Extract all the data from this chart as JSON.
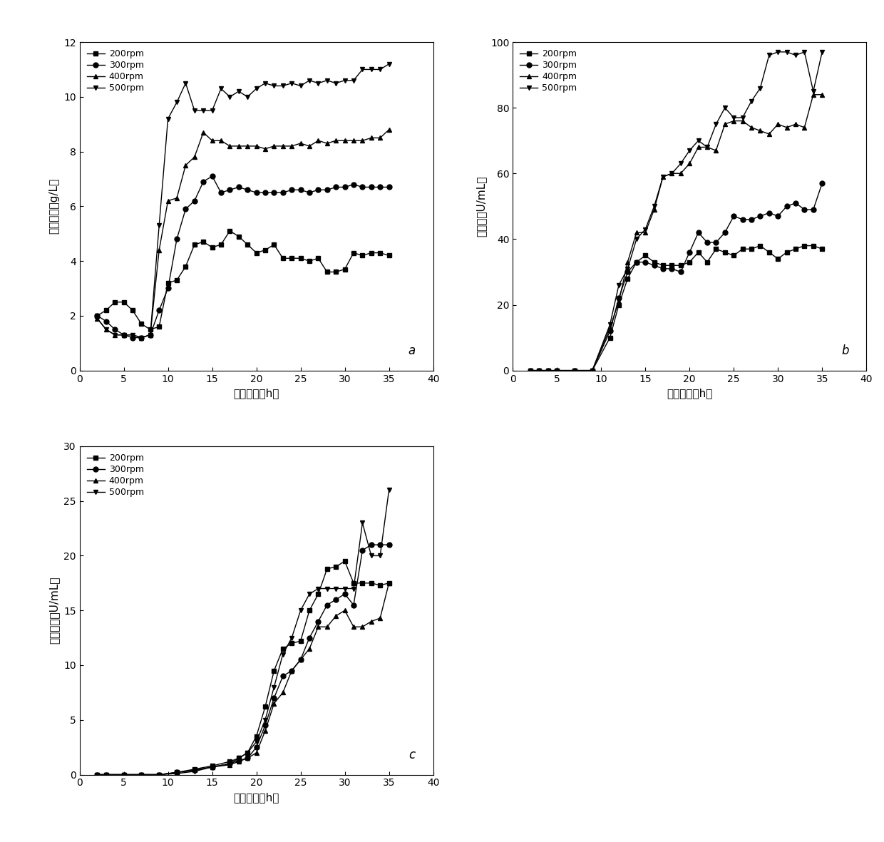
{
  "panel_a": {
    "title": "a",
    "xlabel": "发酵时间（h）",
    "ylabel": "菌体干重（g/L）",
    "xlim": [
      0,
      40
    ],
    "ylim": [
      0,
      12
    ],
    "yticks": [
      0,
      2,
      4,
      6,
      8,
      10,
      12
    ],
    "xticks": [
      0,
      5,
      10,
      15,
      20,
      25,
      30,
      35,
      40
    ],
    "series": {
      "200rpm": {
        "x": [
          2,
          3,
          4,
          5,
          6,
          7,
          8,
          9,
          10,
          11,
          12,
          13,
          14,
          15,
          16,
          17,
          18,
          19,
          20,
          21,
          22,
          23,
          24,
          25,
          26,
          27,
          28,
          29,
          30,
          31,
          32,
          33,
          34,
          35
        ],
        "y": [
          2.0,
          2.2,
          2.5,
          2.5,
          2.2,
          1.7,
          1.5,
          1.6,
          3.2,
          3.3,
          3.8,
          4.6,
          4.7,
          4.5,
          4.6,
          5.1,
          4.9,
          4.6,
          4.3,
          4.4,
          4.6,
          4.1,
          4.1,
          4.1,
          4.0,
          4.1,
          3.6,
          3.6,
          3.7,
          4.3,
          4.2,
          4.3,
          4.3,
          4.2
        ],
        "marker": "s"
      },
      "300rpm": {
        "x": [
          2,
          3,
          4,
          5,
          6,
          7,
          8,
          9,
          10,
          11,
          12,
          13,
          14,
          15,
          16,
          17,
          18,
          19,
          20,
          21,
          22,
          23,
          24,
          25,
          26,
          27,
          28,
          29,
          30,
          31,
          32,
          33,
          34,
          35
        ],
        "y": [
          2.0,
          1.8,
          1.5,
          1.3,
          1.2,
          1.2,
          1.3,
          2.2,
          3.0,
          4.8,
          5.9,
          6.2,
          6.9,
          7.1,
          6.5,
          6.6,
          6.7,
          6.6,
          6.5,
          6.5,
          6.5,
          6.5,
          6.6,
          6.6,
          6.5,
          6.6,
          6.6,
          6.7,
          6.7,
          6.8,
          6.7,
          6.7,
          6.7,
          6.7
        ],
        "marker": "o"
      },
      "400rpm": {
        "x": [
          2,
          3,
          4,
          5,
          6,
          7,
          8,
          9,
          10,
          11,
          12,
          13,
          14,
          15,
          16,
          17,
          18,
          19,
          20,
          21,
          22,
          23,
          24,
          25,
          26,
          27,
          28,
          29,
          30,
          31,
          32,
          33,
          34,
          35
        ],
        "y": [
          1.9,
          1.5,
          1.3,
          1.3,
          1.3,
          1.2,
          1.3,
          4.4,
          6.2,
          6.3,
          7.5,
          7.8,
          8.7,
          8.4,
          8.4,
          8.2,
          8.2,
          8.2,
          8.2,
          8.1,
          8.2,
          8.2,
          8.2,
          8.3,
          8.2,
          8.4,
          8.3,
          8.4,
          8.4,
          8.4,
          8.4,
          8.5,
          8.5,
          8.8
        ],
        "marker": "^"
      },
      "500rpm": {
        "x": [
          2,
          3,
          4,
          5,
          6,
          7,
          8,
          9,
          10,
          11,
          12,
          13,
          14,
          15,
          16,
          17,
          18,
          19,
          20,
          21,
          22,
          23,
          24,
          25,
          26,
          27,
          28,
          29,
          30,
          31,
          32,
          33,
          34,
          35
        ],
        "y": [
          1.9,
          1.5,
          1.3,
          1.3,
          1.3,
          1.2,
          1.3,
          5.3,
          9.2,
          9.8,
          10.5,
          9.5,
          9.5,
          9.5,
          10.3,
          10.0,
          10.2,
          10.0,
          10.3,
          10.5,
          10.4,
          10.4,
          10.5,
          10.4,
          10.6,
          10.5,
          10.6,
          10.5,
          10.6,
          10.6,
          11.0,
          11.0,
          11.0,
          11.2
        ],
        "marker": "v"
      }
    }
  },
  "panel_b": {
    "title": "b",
    "xlabel": "发酵时间（h）",
    "ylabel": "总酶活（U/mL）",
    "xlim": [
      0,
      40
    ],
    "ylim": [
      0,
      100
    ],
    "yticks": [
      0,
      20,
      40,
      60,
      80,
      100
    ],
    "xticks": [
      0,
      5,
      10,
      15,
      20,
      25,
      30,
      35,
      40
    ],
    "series": {
      "200rpm": {
        "x": [
          2,
          3,
          4,
          5,
          7,
          9,
          11,
          12,
          13,
          14,
          15,
          16,
          17,
          18,
          19,
          20,
          21,
          22,
          23,
          24,
          25,
          26,
          27,
          28,
          29,
          30,
          31,
          32,
          33,
          34,
          35
        ],
        "y": [
          0,
          0,
          0,
          0,
          0,
          0,
          10,
          20,
          28,
          33,
          35,
          33,
          32,
          32,
          32,
          33,
          36,
          33,
          37,
          36,
          35,
          37,
          37,
          38,
          36,
          34,
          36,
          37,
          38,
          38,
          37
        ],
        "marker": "s"
      },
      "300rpm": {
        "x": [
          2,
          3,
          4,
          5,
          7,
          9,
          11,
          12,
          13,
          14,
          15,
          16,
          17,
          18,
          19,
          20,
          21,
          22,
          23,
          24,
          25,
          26,
          27,
          28,
          29,
          30,
          31,
          32,
          33,
          34,
          35
        ],
        "y": [
          0,
          0,
          0,
          0,
          0,
          0,
          12,
          22,
          30,
          33,
          33,
          32,
          31,
          31,
          30,
          36,
          42,
          39,
          39,
          42,
          47,
          46,
          46,
          47,
          48,
          47,
          50,
          51,
          49,
          49,
          57
        ],
        "marker": "o"
      },
      "400rpm": {
        "x": [
          2,
          3,
          4,
          5,
          7,
          9,
          11,
          12,
          13,
          14,
          15,
          16,
          17,
          18,
          19,
          20,
          21,
          22,
          23,
          24,
          25,
          26,
          27,
          28,
          29,
          30,
          31,
          32,
          33,
          34,
          35
        ],
        "y": [
          0,
          0,
          0,
          0,
          0,
          0,
          13,
          21,
          33,
          42,
          42,
          49,
          59,
          60,
          60,
          63,
          68,
          68,
          67,
          75,
          76,
          76,
          74,
          73,
          72,
          75,
          74,
          75,
          74,
          84,
          84
        ],
        "marker": "^"
      },
      "500rpm": {
        "x": [
          2,
          3,
          4,
          5,
          7,
          9,
          11,
          12,
          13,
          14,
          15,
          16,
          17,
          18,
          19,
          20,
          21,
          22,
          23,
          24,
          25,
          26,
          27,
          28,
          29,
          30,
          31,
          32,
          33,
          34,
          35
        ],
        "y": [
          0,
          0,
          0,
          0,
          0,
          0,
          14,
          26,
          31,
          40,
          43,
          50,
          59,
          60,
          63,
          67,
          70,
          68,
          75,
          80,
          77,
          77,
          82,
          86,
          96,
          97,
          97,
          96,
          97,
          85,
          97
        ],
        "marker": "v"
      }
    }
  },
  "panel_c": {
    "title": "c",
    "xlabel": "发酵时间（h）",
    "ylabel": "胞外酶活（U/mL）",
    "xlim": [
      0,
      40
    ],
    "ylim": [
      0,
      30
    ],
    "yticks": [
      0,
      5,
      10,
      15,
      20,
      25,
      30
    ],
    "xticks": [
      0,
      5,
      10,
      15,
      20,
      25,
      30,
      35,
      40
    ],
    "series": {
      "200rpm": {
        "x": [
          2,
          3,
          5,
          7,
          9,
          11,
          13,
          15,
          17,
          18,
          19,
          20,
          21,
          22,
          23,
          24,
          25,
          26,
          27,
          28,
          29,
          30,
          31,
          32,
          33,
          34,
          35
        ],
        "y": [
          0,
          0,
          0,
          0,
          0,
          0.2,
          0.5,
          0.8,
          1.2,
          1.5,
          2.0,
          3.5,
          6.2,
          9.5,
          11.5,
          12.0,
          12.2,
          15.0,
          16.5,
          18.8,
          19.0,
          19.5,
          17.5,
          17.5,
          17.5,
          17.3,
          17.5
        ],
        "marker": "s"
      },
      "300rpm": {
        "x": [
          2,
          3,
          5,
          7,
          9,
          11,
          13,
          15,
          17,
          18,
          19,
          20,
          21,
          22,
          23,
          24,
          25,
          26,
          27,
          28,
          29,
          30,
          31,
          32,
          33,
          34,
          35
        ],
        "y": [
          0,
          0,
          0,
          0,
          0,
          0.2,
          0.4,
          0.7,
          1.0,
          1.3,
          1.5,
          2.5,
          4.5,
          7.0,
          9.0,
          9.5,
          10.5,
          12.5,
          14.0,
          15.5,
          16.0,
          16.5,
          15.5,
          20.5,
          21.0,
          21.0,
          21.0
        ],
        "marker": "o"
      },
      "400rpm": {
        "x": [
          2,
          3,
          5,
          7,
          9,
          11,
          13,
          15,
          17,
          18,
          19,
          20,
          21,
          22,
          23,
          24,
          25,
          26,
          27,
          28,
          29,
          30,
          31,
          32,
          33,
          34,
          35
        ],
        "y": [
          0,
          0,
          0,
          0,
          0,
          0.2,
          0.4,
          0.7,
          0.9,
          1.2,
          1.5,
          2.0,
          4.0,
          6.5,
          7.5,
          9.5,
          10.5,
          11.5,
          13.5,
          13.5,
          14.5,
          15.0,
          13.5,
          13.5,
          14.0,
          14.3,
          17.5
        ],
        "marker": "^"
      },
      "500rpm": {
        "x": [
          2,
          3,
          5,
          7,
          9,
          11,
          13,
          15,
          17,
          18,
          19,
          20,
          21,
          22,
          23,
          24,
          25,
          26,
          27,
          28,
          29,
          30,
          31,
          32,
          33,
          34,
          35
        ],
        "y": [
          0,
          0,
          0,
          0,
          0,
          0.1,
          0.3,
          0.7,
          1.0,
          1.5,
          2.0,
          3.0,
          5.0,
          8.0,
          11.0,
          12.5,
          15.0,
          16.5,
          17.0,
          17.0,
          17.0,
          17.0,
          17.0,
          23.0,
          20.0,
          20.0,
          26.0
        ],
        "marker": "v"
      }
    }
  },
  "legend_labels": [
    "200rpm",
    "300rpm",
    "400rpm",
    "500rpm"
  ],
  "legend_markers": [
    "s",
    "o",
    "^",
    "v"
  ],
  "bg_color": "#f0f0f0"
}
